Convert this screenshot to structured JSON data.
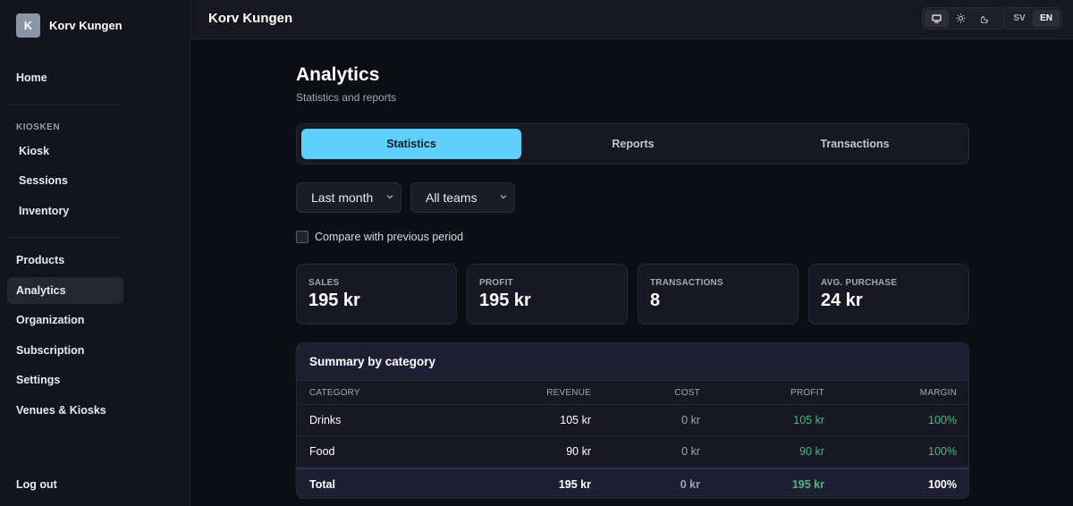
{
  "brand": {
    "initial": "K",
    "name": "Korv Kungen"
  },
  "sidebar": {
    "section_kiosken": "KIOSKEN",
    "items": [
      {
        "label": "Home"
      },
      {
        "label": "Kiosk"
      },
      {
        "label": "Sessions"
      },
      {
        "label": "Inventory"
      },
      {
        "label": "Products"
      },
      {
        "label": "Analytics"
      },
      {
        "label": "Organization"
      },
      {
        "label": "Subscription"
      },
      {
        "label": "Settings"
      },
      {
        "label": "Venues & Kiosks"
      }
    ],
    "logout": "Log out"
  },
  "topbar": {
    "title": "Korv Kungen",
    "theme_icons": [
      "monitor-icon",
      "sun-icon",
      "moon-icon"
    ],
    "languages": [
      "SV",
      "EN"
    ],
    "active_language": "EN"
  },
  "page": {
    "title": "Analytics",
    "subtitle": "Statistics and reports"
  },
  "tabs": [
    {
      "label": "Statistics"
    },
    {
      "label": "Reports"
    },
    {
      "label": "Transactions"
    }
  ],
  "filters": {
    "period": "Last month",
    "team": "All teams"
  },
  "compare_label": "Compare with previous period",
  "stats": [
    {
      "label": "SALES",
      "value": "195 kr"
    },
    {
      "label": "PROFIT",
      "value": "195 kr"
    },
    {
      "label": "TRANSACTIONS",
      "value": "8"
    },
    {
      "label": "AVG. PURCHASE",
      "value": "24 kr"
    }
  ],
  "summary": {
    "title": "Summary by category",
    "columns": [
      "CATEGORY",
      "REVENUE",
      "COST",
      "PROFIT",
      "MARGIN"
    ],
    "rows": [
      [
        "Drinks",
        "105 kr",
        "0 kr",
        "105 kr",
        "100%"
      ],
      [
        "Food",
        "90 kr",
        "0 kr",
        "90 kr",
        "100%"
      ]
    ],
    "total": [
      "Total",
      "195 kr",
      "0 kr",
      "195 kr",
      "100%"
    ]
  },
  "colors": {
    "accent": "#5fd0fb",
    "positive": "#4fb584"
  }
}
